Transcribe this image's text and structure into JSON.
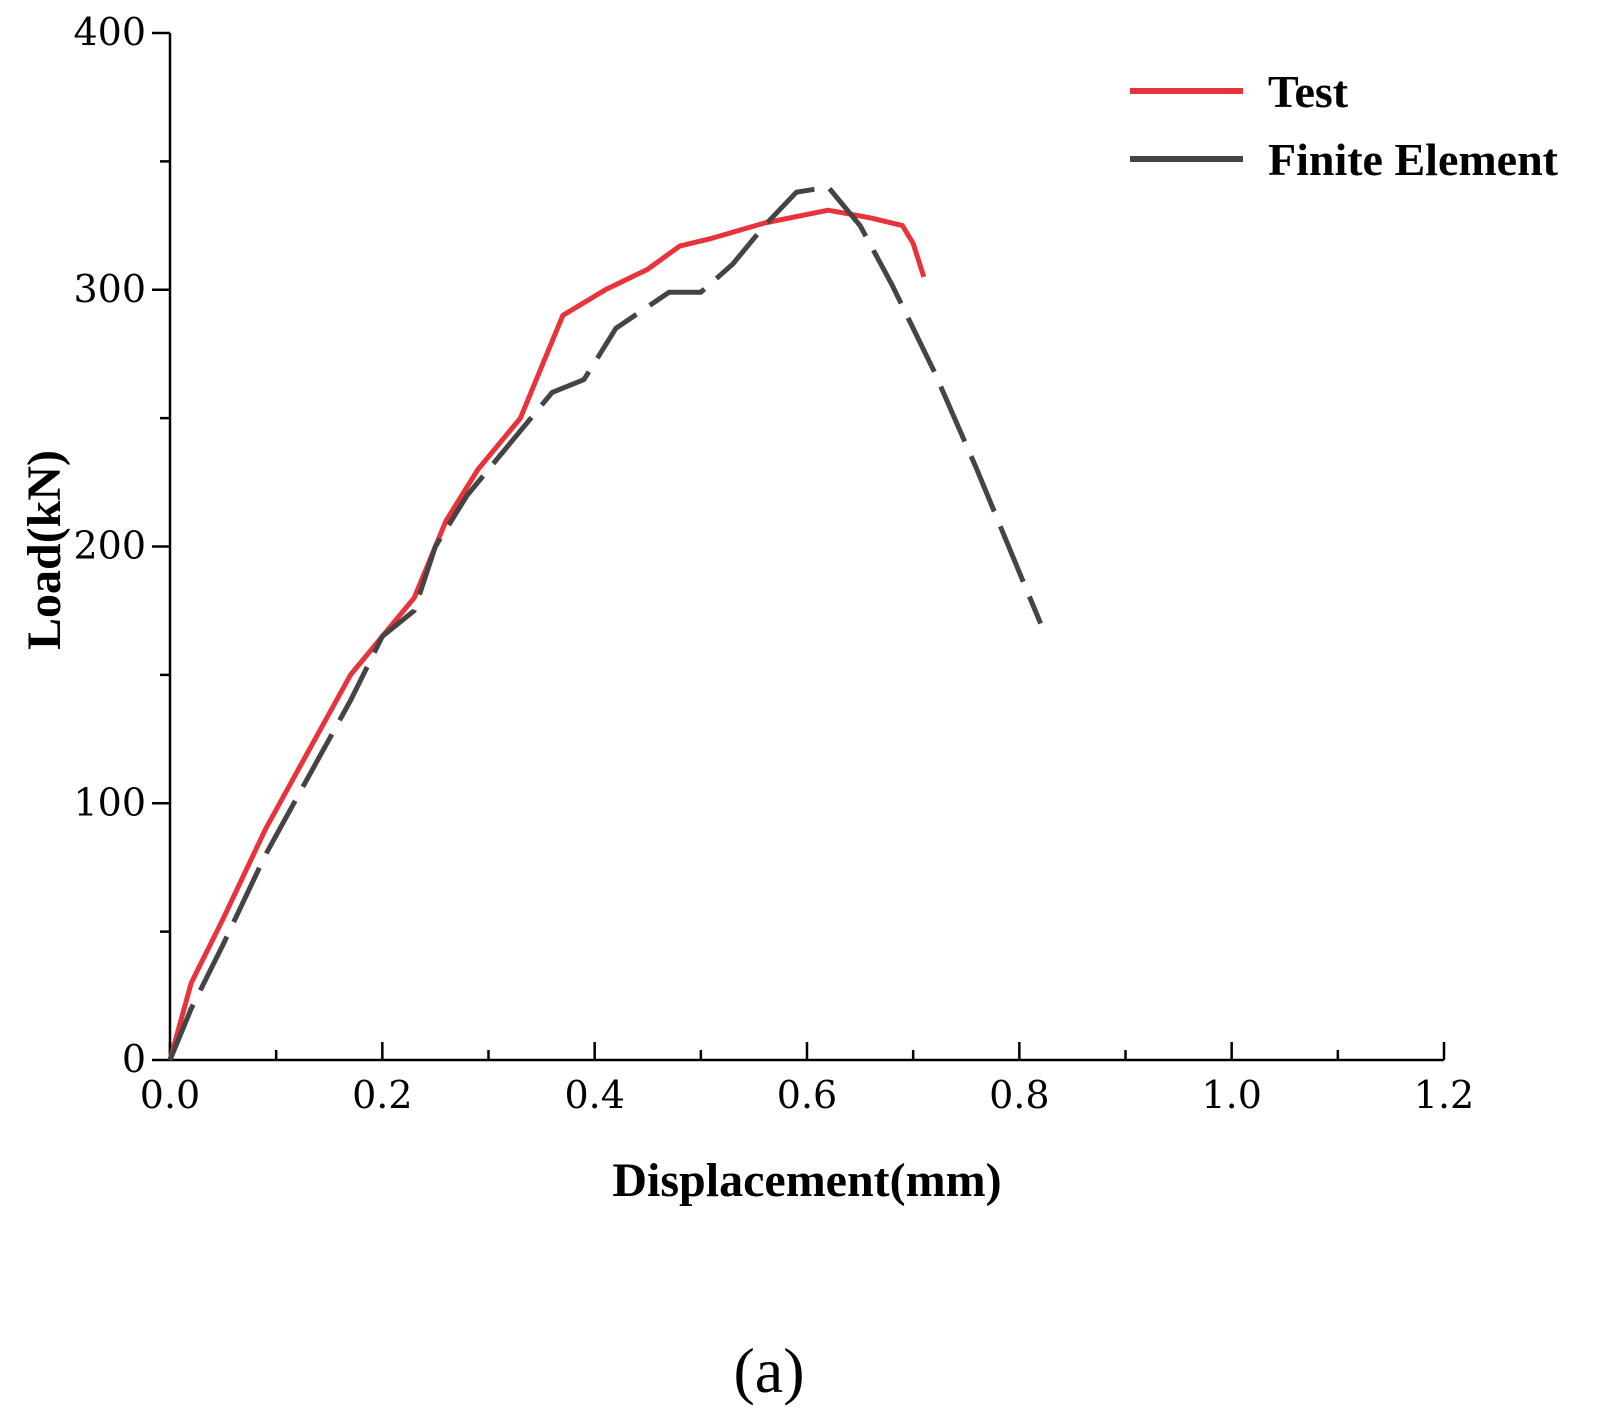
{
  "chart_data": {
    "type": "line",
    "xlabel": "Displacement(mm)",
    "ylabel": "Load(kN)",
    "xlim": [
      0,
      1.2
    ],
    "ylim": [
      0,
      400
    ],
    "x_ticks": [
      "0.0",
      "0.2",
      "0.4",
      "0.6",
      "0.8",
      "1.0",
      "1.2"
    ],
    "y_ticks": [
      "0",
      "100",
      "200",
      "300",
      "400"
    ],
    "x_tick_values": [
      0,
      0.2,
      0.4,
      0.6,
      0.8,
      1.0,
      1.2
    ],
    "y_tick_values": [
      0,
      100,
      200,
      300,
      400
    ],
    "x_minor_step": 0.1,
    "grid": false,
    "legend_position": "top-right",
    "series": [
      {
        "name": "Test",
        "color": "#e8333a",
        "style": "solid",
        "x": [
          0.0,
          0.02,
          0.05,
          0.09,
          0.13,
          0.17,
          0.2,
          0.23,
          0.26,
          0.29,
          0.33,
          0.37,
          0.41,
          0.45,
          0.48,
          0.51,
          0.56,
          0.62,
          0.66,
          0.69,
          0.7,
          0.71
        ],
        "y": [
          0,
          30,
          55,
          90,
          120,
          150,
          165,
          180,
          210,
          230,
          250,
          290,
          300,
          308,
          317,
          320,
          326,
          331,
          328,
          325,
          318,
          305
        ]
      },
      {
        "name": "Finite Element",
        "color": "#444444",
        "style": "dashed",
        "x": [
          0.0,
          0.02,
          0.05,
          0.09,
          0.13,
          0.17,
          0.2,
          0.23,
          0.25,
          0.28,
          0.32,
          0.36,
          0.39,
          0.42,
          0.47,
          0.5,
          0.53,
          0.56,
          0.59,
          0.62,
          0.65,
          0.68,
          0.72,
          0.76,
          0.8,
          0.82
        ],
        "y": [
          0,
          20,
          45,
          80,
          110,
          140,
          165,
          175,
          200,
          220,
          240,
          260,
          265,
          285,
          299,
          299,
          310,
          325,
          338,
          340,
          325,
          302,
          268,
          230,
          190,
          170
        ]
      }
    ]
  },
  "caption": {
    "label": "(a)"
  }
}
